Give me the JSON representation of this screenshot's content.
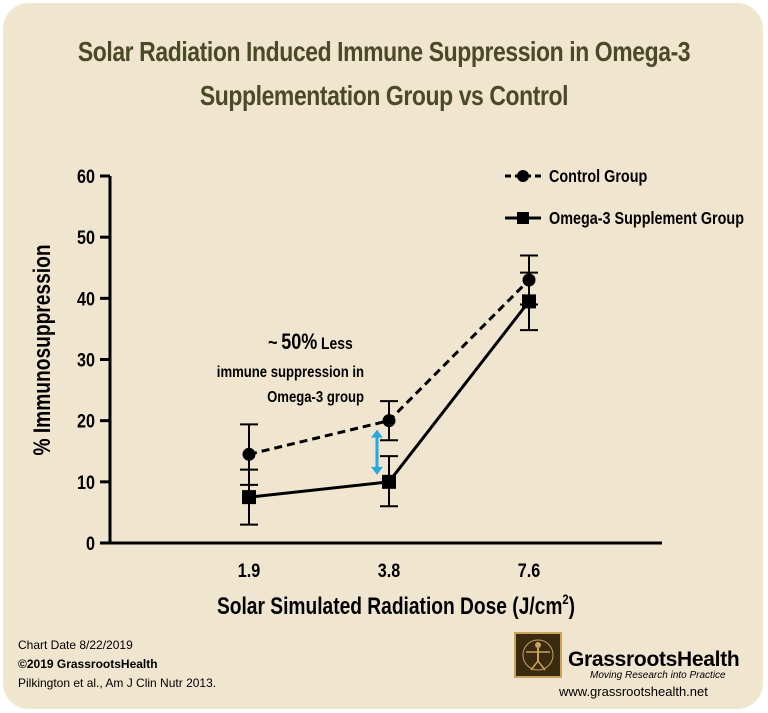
{
  "chart_data": {
    "type": "line",
    "title_line1": "Solar Radiation Induced Immune Suppression in Omega-3",
    "title_line2": "Supplementation Group vs Control",
    "xlabel": "Solar Simulated Radiation Dose (J/cm",
    "xlabel_sup": "2",
    "xlabel_close": ")",
    "ylabel": "% Immunosuppression",
    "categories": [
      "1.9",
      "3.8",
      "7.6"
    ],
    "ylim": [
      0,
      60
    ],
    "yticks": [
      "0",
      "10",
      "20",
      "30",
      "40",
      "50",
      "60"
    ],
    "series": [
      {
        "name": "Control Group",
        "style": "dashed",
        "marker": "circle",
        "values": [
          14.5,
          20,
          43
        ],
        "err_low": [
          9.5,
          16.8,
          39
        ],
        "err_high": [
          19.4,
          23.2,
          47
        ]
      },
      {
        "name": "Omega-3 Supplement Group",
        "style": "solid",
        "marker": "square",
        "values": [
          7.5,
          10,
          39.5
        ],
        "err_low": [
          3,
          6,
          34.8
        ],
        "err_high": [
          12,
          14.2,
          44.2
        ]
      }
    ],
    "annotation": {
      "tilde": "~",
      "percent": "50%",
      "less": "Less",
      "line2": "immune suppression in",
      "line3": "Omega-3 group",
      "arrow_color": "#29a8e0"
    }
  },
  "footer": {
    "chart_date": "Chart Date 8/22/2019",
    "copyright": "©2019 GrassrootsHealth",
    "citation": "Pilkington et al., Am J Clin Nutr 2013."
  },
  "brand": {
    "name": "GrassrootsHealth",
    "tagline": "Moving Research into Practice",
    "url": "www.grassrootshealth.net"
  },
  "colors": {
    "background": "#f0e6d0",
    "title": "#4a4a28"
  }
}
